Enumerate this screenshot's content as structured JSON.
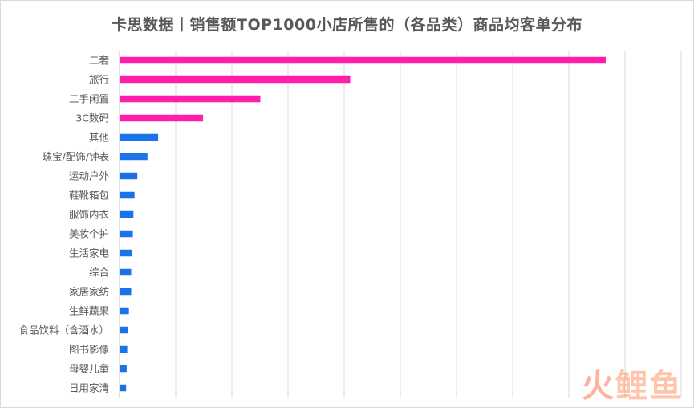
{
  "chart_data": {
    "type": "bar",
    "orientation": "horizontal",
    "title": "卡思数据丨销售额TOP1000小店所售的（各品类）商品均客单分布",
    "categories": [
      "二奢",
      "旅行",
      "二手闲置",
      "3C数码",
      "其他",
      "珠宝/配饰/钟表",
      "运动户外",
      "鞋靴箱包",
      "服饰内衣",
      "美妆个护",
      "生活家电",
      "综合",
      "家居家纺",
      "生鲜蔬果",
      "食品饮料（含酒水）",
      "图书影像",
      "母婴儿童",
      "日用家清"
    ],
    "values": [
      8650,
      4100,
      2500,
      1480,
      680,
      490,
      310,
      260,
      240,
      230,
      220,
      200,
      200,
      160,
      150,
      130,
      120,
      110
    ],
    "highlight_count": 4,
    "xlim": [
      0,
      10000
    ],
    "grid": true,
    "gridlines": 10,
    "colors": {
      "highlight": "#ff1fab",
      "normal": "#1a73e8",
      "grid": "#d9d9d9",
      "text": "#595959"
    }
  },
  "watermark": {
    "part1": "火",
    "part2": "鲤鱼"
  }
}
